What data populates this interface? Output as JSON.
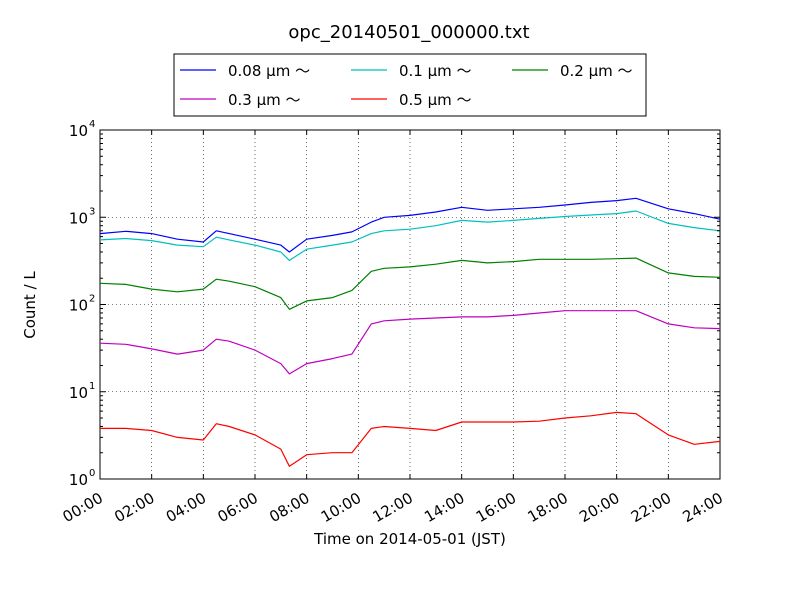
{
  "chart_data": {
    "type": "line",
    "title": "opc_20140501_000000.txt",
    "xlabel": "Time on 2014-05-01 (JST)",
    "ylabel": "Count / L",
    "yscale": "log",
    "ylim": [
      1,
      10000
    ],
    "xlim": [
      "00:00",
      "24:00"
    ],
    "x_ticks": [
      "00:00",
      "02:00",
      "04:00",
      "06:00",
      "08:00",
      "10:00",
      "12:00",
      "14:00",
      "16:00",
      "18:00",
      "20:00",
      "22:00",
      "24:00"
    ],
    "y_ticks": [
      {
        "base": "10",
        "exp": "0"
      },
      {
        "base": "10",
        "exp": "1"
      },
      {
        "base": "10",
        "exp": "2"
      },
      {
        "base": "10",
        "exp": "3"
      },
      {
        "base": "10",
        "exp": "4"
      }
    ],
    "grid": true,
    "legend_position": "top-center",
    "x": [
      "00:00",
      "01:00",
      "02:00",
      "03:00",
      "04:00",
      "04:30",
      "05:00",
      "06:00",
      "07:00",
      "07:20",
      "08:00",
      "09:00",
      "09:45",
      "10:30",
      "11:00",
      "12:00",
      "13:00",
      "14:00",
      "15:00",
      "16:00",
      "17:00",
      "18:00",
      "19:00",
      "20:00",
      "20:45",
      "22:00",
      "23:00",
      "24:00"
    ],
    "series": [
      {
        "name": "0.08 μm ～",
        "color": "#0000ff",
        "values": [
          650,
          690,
          650,
          560,
          520,
          700,
          650,
          560,
          480,
          400,
          560,
          620,
          680,
          880,
          1000,
          1050,
          1150,
          1300,
          1200,
          1250,
          1300,
          1380,
          1480,
          1550,
          1650,
          1250,
          1100,
          950
        ]
      },
      {
        "name": "0.1 μm ～",
        "color": "#00bfbf",
        "values": [
          550,
          570,
          540,
          480,
          460,
          590,
          550,
          480,
          400,
          320,
          430,
          480,
          520,
          650,
          700,
          730,
          800,
          920,
          880,
          920,
          970,
          1020,
          1060,
          1100,
          1180,
          850,
          760,
          700
        ]
      },
      {
        "name": "0.2 μm ～",
        "color": "#008000",
        "values": [
          175,
          170,
          150,
          140,
          150,
          195,
          185,
          160,
          120,
          88,
          110,
          120,
          145,
          240,
          260,
          270,
          290,
          320,
          300,
          310,
          330,
          330,
          330,
          335,
          340,
          230,
          210,
          205
        ]
      },
      {
        "name": "0.3 μm ～",
        "color": "#bf00bf",
        "values": [
          36,
          35,
          31,
          27,
          30,
          40,
          38,
          30,
          21,
          16,
          21,
          24,
          27,
          60,
          65,
          68,
          70,
          72,
          72,
          75,
          80,
          85,
          85,
          85,
          85,
          60,
          54,
          53
        ]
      },
      {
        "name": "0.5 μm ～",
        "color": "#ff0000",
        "values": [
          3.8,
          3.8,
          3.6,
          3.0,
          2.8,
          4.3,
          4.0,
          3.2,
          2.2,
          1.4,
          1.9,
          2.0,
          2.0,
          3.8,
          4.0,
          3.8,
          3.6,
          4.5,
          4.5,
          4.5,
          4.6,
          5.0,
          5.3,
          5.8,
          5.6,
          3.2,
          2.5,
          2.7
        ]
      }
    ]
  }
}
